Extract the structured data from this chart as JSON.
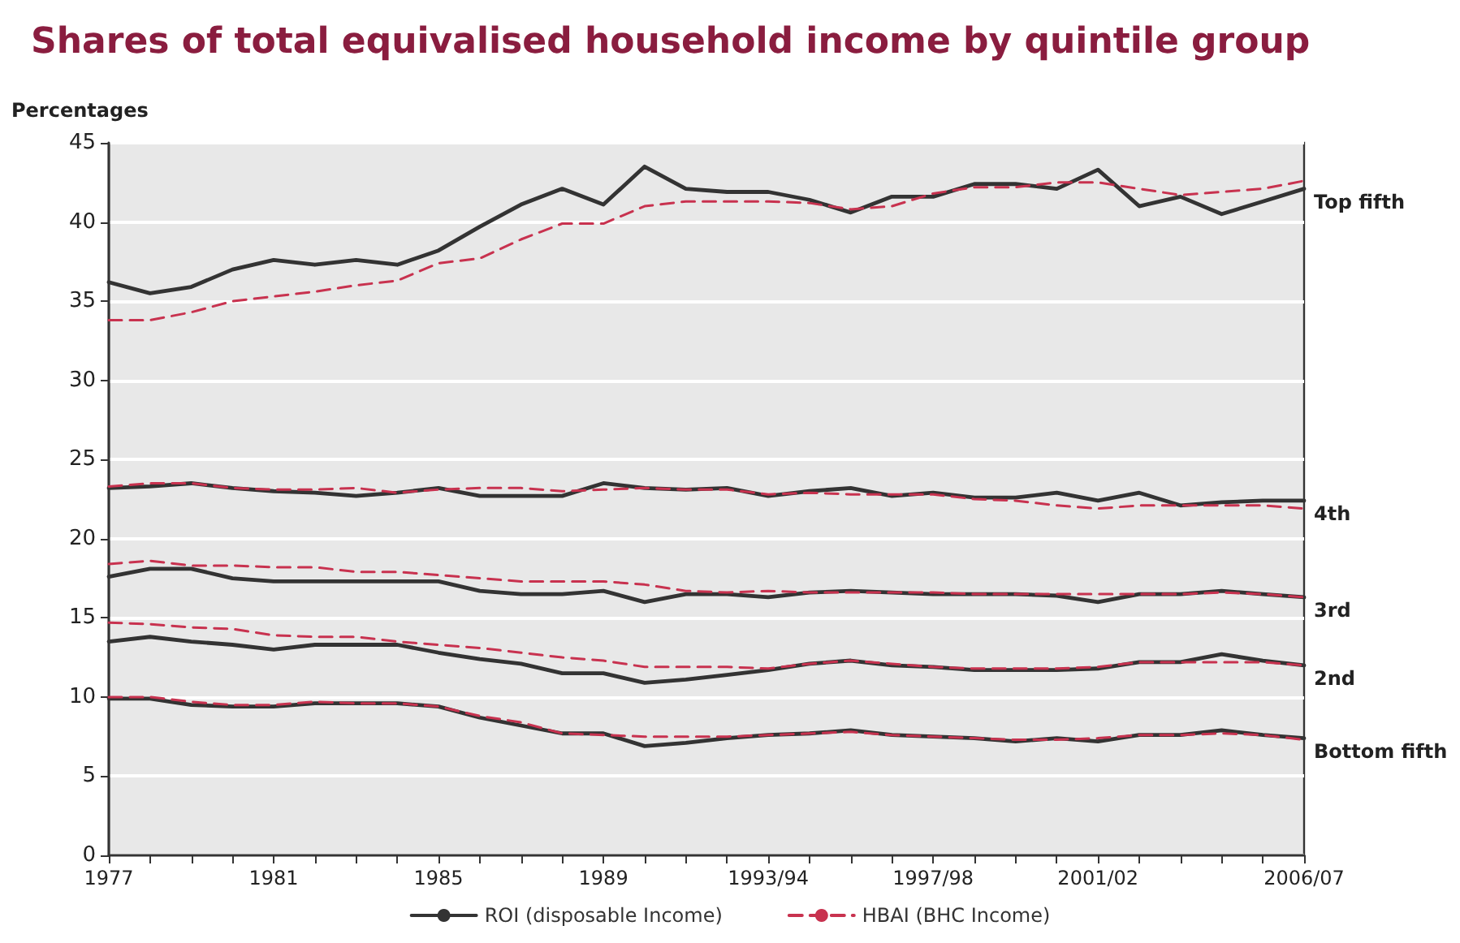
{
  "chart_data": {
    "type": "line",
    "title": "Shares of total equivalised household income by quintile group",
    "ylabel": "Percentages",
    "categories": [
      "1977",
      null,
      null,
      null,
      "1981",
      null,
      null,
      null,
      "1985",
      null,
      null,
      null,
      "1989",
      null,
      null,
      null,
      "1993/94",
      null,
      null,
      null,
      "1997/98",
      null,
      null,
      null,
      "2001/02",
      null,
      null,
      null,
      null,
      "2006/07"
    ],
    "ylim": [
      0,
      45
    ],
    "yticks": [
      0,
      5,
      10,
      15,
      20,
      25,
      30,
      35,
      40,
      45
    ],
    "grid": "y",
    "legend": "bottom",
    "series": [
      {
        "name": "ROI (disposable Income)",
        "color": "#333333",
        "line_style": "solid",
        "values": [
          36.2,
          35.5,
          35.9,
          37.0,
          37.6,
          37.3,
          37.6,
          37.3,
          38.2,
          39.7,
          41.1,
          42.1,
          41.1,
          43.5,
          42.1,
          41.9,
          41.9,
          41.4,
          40.6,
          41.6,
          41.6,
          42.4,
          42.4,
          42.1,
          43.3,
          41.0,
          41.6,
          40.5,
          41.3,
          42.1
        ]
      },
      {
        "name": "HBAI (BHC Income)",
        "color": "#c8324f",
        "line_style": "dashed",
        "values": [
          33.8,
          33.8,
          34.3,
          35.0,
          35.3,
          35.6,
          36.0,
          36.3,
          37.4,
          37.7,
          38.9,
          39.9,
          39.9,
          41.0,
          41.3,
          41.3,
          41.3,
          41.2,
          40.8,
          41.0,
          41.8,
          42.2,
          42.2,
          42.5,
          42.5,
          42.1,
          41.7,
          41.9,
          42.1,
          42.6
        ]
      },
      {
        "color": "#333333",
        "line_style": "solid",
        "values": [
          23.2,
          23.3,
          23.5,
          23.2,
          23.0,
          22.9,
          22.7,
          22.9,
          23.2,
          22.7,
          22.7,
          22.7,
          23.5,
          23.2,
          23.1,
          23.2,
          22.7,
          23.0,
          23.2,
          22.7,
          22.9,
          22.6,
          22.6,
          22.9,
          22.4,
          22.9,
          22.1,
          22.3,
          22.4,
          22.4
        ]
      },
      {
        "color": "#c8324f",
        "line_style": "dashed",
        "values": [
          23.3,
          23.5,
          23.5,
          23.2,
          23.1,
          23.1,
          23.2,
          22.9,
          23.1,
          23.2,
          23.2,
          23.0,
          23.1,
          23.2,
          23.1,
          23.1,
          22.8,
          22.9,
          22.8,
          22.8,
          22.8,
          22.5,
          22.4,
          22.1,
          21.9,
          22.1,
          22.1,
          22.1,
          22.1,
          21.9
        ]
      },
      {
        "color": "#333333",
        "line_style": "solid",
        "values": [
          17.6,
          18.1,
          18.1,
          17.5,
          17.3,
          17.3,
          17.3,
          17.3,
          17.3,
          16.7,
          16.5,
          16.5,
          16.7,
          16.0,
          16.5,
          16.5,
          16.3,
          16.6,
          16.7,
          16.6,
          16.5,
          16.5,
          16.5,
          16.4,
          16.0,
          16.5,
          16.5,
          16.7,
          16.5,
          16.3
        ]
      },
      {
        "color": "#c8324f",
        "line_style": "dashed",
        "values": [
          18.4,
          18.6,
          18.3,
          18.3,
          18.2,
          18.2,
          17.9,
          17.9,
          17.7,
          17.5,
          17.3,
          17.3,
          17.3,
          17.1,
          16.7,
          16.6,
          16.7,
          16.6,
          16.6,
          16.6,
          16.6,
          16.5,
          16.5,
          16.5,
          16.5,
          16.5,
          16.5,
          16.6,
          16.5,
          16.3
        ]
      },
      {
        "color": "#333333",
        "line_style": "solid",
        "values": [
          13.5,
          13.8,
          13.5,
          13.3,
          13.0,
          13.3,
          13.3,
          13.3,
          12.8,
          12.4,
          12.1,
          11.5,
          11.5,
          10.9,
          11.1,
          11.4,
          11.7,
          12.1,
          12.3,
          12.0,
          11.9,
          11.7,
          11.7,
          11.7,
          11.8,
          12.2,
          12.2,
          12.7,
          12.3,
          12.0
        ]
      },
      {
        "color": "#c8324f",
        "line_style": "dashed",
        "values": [
          14.7,
          14.6,
          14.4,
          14.3,
          13.9,
          13.8,
          13.8,
          13.5,
          13.3,
          13.1,
          12.8,
          12.5,
          12.3,
          11.9,
          11.9,
          11.9,
          11.8,
          12.1,
          12.3,
          12.1,
          11.9,
          11.8,
          11.8,
          11.8,
          11.9,
          12.2,
          12.2,
          12.2,
          12.2,
          12.0
        ]
      },
      {
        "color": "#333333",
        "line_style": "solid",
        "values": [
          9.9,
          9.9,
          9.5,
          9.4,
          9.4,
          9.6,
          9.6,
          9.6,
          9.4,
          8.7,
          8.2,
          7.7,
          7.7,
          6.9,
          7.1,
          7.4,
          7.6,
          7.7,
          7.9,
          7.6,
          7.5,
          7.4,
          7.2,
          7.4,
          7.2,
          7.6,
          7.6,
          7.9,
          7.6,
          7.4
        ]
      },
      {
        "color": "#c8324f",
        "line_style": "dashed",
        "values": [
          10.0,
          10.0,
          9.7,
          9.5,
          9.5,
          9.7,
          9.6,
          9.6,
          9.4,
          8.8,
          8.4,
          7.7,
          7.6,
          7.5,
          7.5,
          7.5,
          7.6,
          7.7,
          7.8,
          7.6,
          7.5,
          7.4,
          7.3,
          7.3,
          7.4,
          7.6,
          7.6,
          7.7,
          7.6,
          7.3
        ]
      }
    ],
    "annotations": [
      {
        "text": "Top fifth",
        "x": "2006/07",
        "y": 42.1
      },
      {
        "text": "4th",
        "x": "2006/07",
        "y": 22.4
      },
      {
        "text": "3rd",
        "x": "2006/07",
        "y": 16.3
      },
      {
        "text": "2nd",
        "x": "2006/07",
        "y": 12.0
      },
      {
        "text": "Bottom fifth",
        "x": "2006/07",
        "y": 7.4
      }
    ]
  }
}
